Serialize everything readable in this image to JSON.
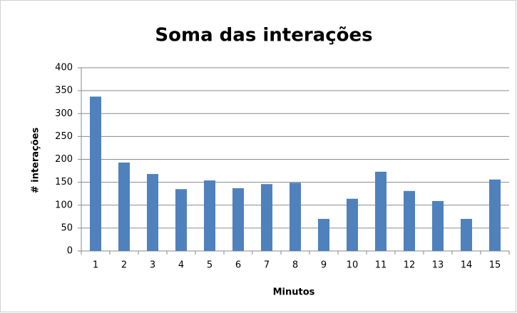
{
  "chart_data": {
    "type": "bar",
    "title": "Soma das interações",
    "x_label": "Minutos",
    "y_label": "# interações",
    "categories": [
      "1",
      "2",
      "3",
      "4",
      "5",
      "6",
      "7",
      "8",
      "9",
      "10",
      "11",
      "12",
      "13",
      "14",
      "15"
    ],
    "values": [
      337,
      193,
      168,
      135,
      154,
      137,
      146,
      149,
      70,
      114,
      173,
      131,
      109,
      70,
      156
    ],
    "color": "#4f81bd",
    "ylim": [
      0,
      400
    ],
    "yticks": [
      0,
      50,
      100,
      150,
      200,
      250,
      300,
      350,
      400
    ],
    "grid": true
  }
}
